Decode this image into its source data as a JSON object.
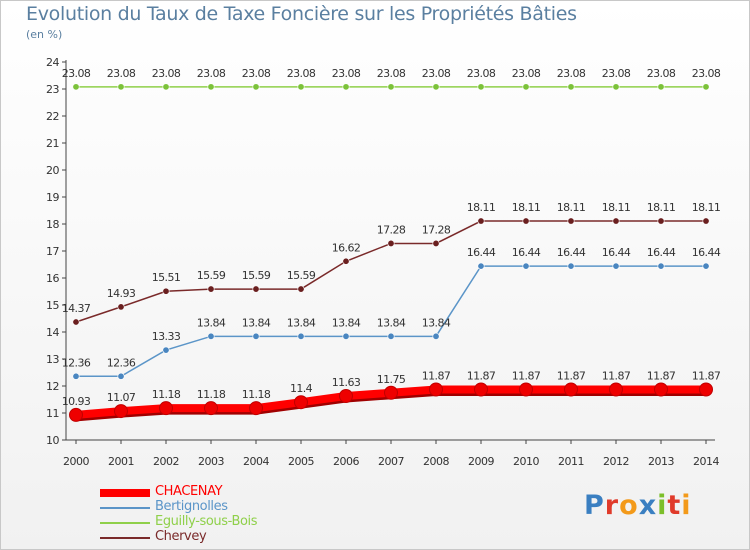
{
  "header": {
    "title": "Evolution du Taux de Taxe Foncière sur les Propriétés Bâties",
    "subtitle": "(en %)"
  },
  "logo": {
    "text": "Proxiti",
    "letters": [
      {
        "ch": "P",
        "color": "#3a7fc1"
      },
      {
        "ch": "r",
        "color": "#e03a2a"
      },
      {
        "ch": "o",
        "color": "#f39a1a"
      },
      {
        "ch": "x",
        "color": "#3a7fc1"
      },
      {
        "ch": "i",
        "color": "#7cbf2a"
      },
      {
        "ch": "t",
        "color": "#e03a2a"
      },
      {
        "ch": "i",
        "color": "#f39a1a"
      }
    ]
  },
  "chart_data": {
    "type": "line",
    "title": "Evolution du Taux de Taxe Foncière sur les Propriétés Bâties",
    "ylabel": "(en %)",
    "xlabel": "",
    "ylim": [
      10,
      24
    ],
    "yticks": [
      10,
      11,
      12,
      13,
      14,
      15,
      16,
      17,
      18,
      19,
      20,
      21,
      22,
      23,
      24
    ],
    "grid": false,
    "x": [
      "2000",
      "2001",
      "2002",
      "2003",
      "2004",
      "2005",
      "2006",
      "2007",
      "2008",
      "2009",
      "2010",
      "2011",
      "2012",
      "2013",
      "2014"
    ],
    "series": [
      {
        "name": "CHACENAY",
        "color": "#ff0000",
        "marker_color": "#ee0000",
        "emphasis": true,
        "values": [
          10.93,
          11.07,
          11.18,
          11.18,
          11.18,
          11.4,
          11.63,
          11.75,
          11.87,
          11.87,
          11.87,
          11.87,
          11.87,
          11.87,
          11.87
        ],
        "labels": [
          "10.93",
          "11.07",
          "11.18",
          "11.18",
          "11.18",
          "11.4",
          "11.63",
          "11.75",
          "11.87",
          "11.87",
          "11.87",
          "11.87",
          "11.87",
          "11.87",
          "11.87"
        ]
      },
      {
        "name": "Bertignolles",
        "color": "#5b95c8",
        "marker_color": "#4a86c0",
        "emphasis": false,
        "values": [
          12.36,
          12.36,
          13.33,
          13.84,
          13.84,
          13.84,
          13.84,
          13.84,
          13.84,
          16.44,
          16.44,
          16.44,
          16.44,
          16.44,
          16.44
        ],
        "labels": [
          "12.36",
          "12.36",
          "13.33",
          "13.84",
          "13.84",
          "13.84",
          "13.84",
          "13.84",
          "13.84",
          "16.44",
          "16.44",
          "16.44",
          "16.44",
          "16.44",
          "16.44"
        ]
      },
      {
        "name": "Eguilly-sous-Bois",
        "color": "#8fd04a",
        "marker_color": "#7cc23a",
        "emphasis": false,
        "values": [
          23.08,
          23.08,
          23.08,
          23.08,
          23.08,
          23.08,
          23.08,
          23.08,
          23.08,
          23.08,
          23.08,
          23.08,
          23.08,
          23.08,
          23.08
        ],
        "labels": [
          "23.08",
          "23.08",
          "23.08",
          "23.08",
          "23.08",
          "23.08",
          "23.08",
          "23.08",
          "23.08",
          "23.08",
          "23.08",
          "23.08",
          "23.08",
          "23.08",
          "23.08"
        ]
      },
      {
        "name": "Chervey",
        "color": "#7a2a2a",
        "marker_color": "#6a1f1f",
        "emphasis": false,
        "values": [
          14.37,
          14.93,
          15.51,
          15.59,
          15.59,
          15.59,
          16.62,
          17.28,
          17.28,
          18.11,
          18.11,
          18.11,
          18.11,
          18.11,
          18.11
        ],
        "labels": [
          "14.37",
          "14.93",
          "15.51",
          "15.59",
          "15.59",
          "15.59",
          "16.62",
          "17.28",
          "17.28",
          "18.11",
          "18.11",
          "18.11",
          "18.11",
          "18.11",
          "18.11"
        ]
      }
    ],
    "legend": "bottom-left"
  }
}
